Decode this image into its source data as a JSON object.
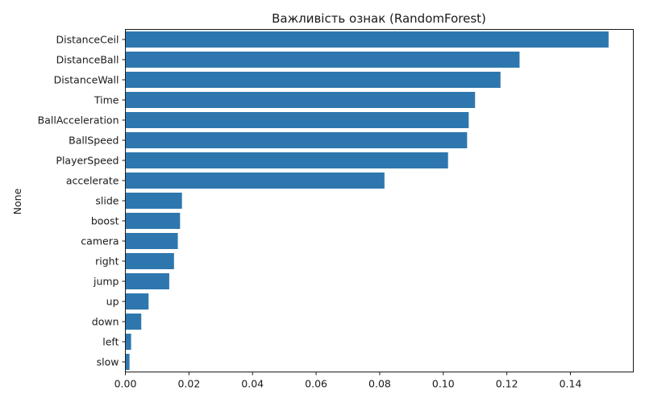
{
  "chart_data": {
    "type": "bar",
    "orientation": "horizontal",
    "title": "Важливість ознак (RandomForest)",
    "xlabel": "",
    "ylabel": "None",
    "xlim": [
      0,
      0.16
    ],
    "xticks": [
      0.0,
      0.02,
      0.04,
      0.06,
      0.08,
      0.1,
      0.12,
      0.14
    ],
    "xtick_labels": [
      "0.00",
      "0.02",
      "0.04",
      "0.06",
      "0.08",
      "0.10",
      "0.12",
      "0.14"
    ],
    "bar_color": "#2e77ae",
    "grid": false,
    "categories": [
      "DistanceCeil",
      "DistanceBall",
      "DistanceWall",
      "Time",
      "BallAcceleration",
      "BallSpeed",
      "PlayerSpeed",
      "accelerate",
      "slide",
      "boost",
      "camera",
      "right",
      "jump",
      "up",
      "down",
      "left",
      "slow"
    ],
    "values": [
      0.152,
      0.124,
      0.118,
      0.11,
      0.108,
      0.1075,
      0.1015,
      0.0815,
      0.0178,
      0.0172,
      0.0165,
      0.0153,
      0.0138,
      0.0073,
      0.005,
      0.0018,
      0.0013
    ]
  }
}
